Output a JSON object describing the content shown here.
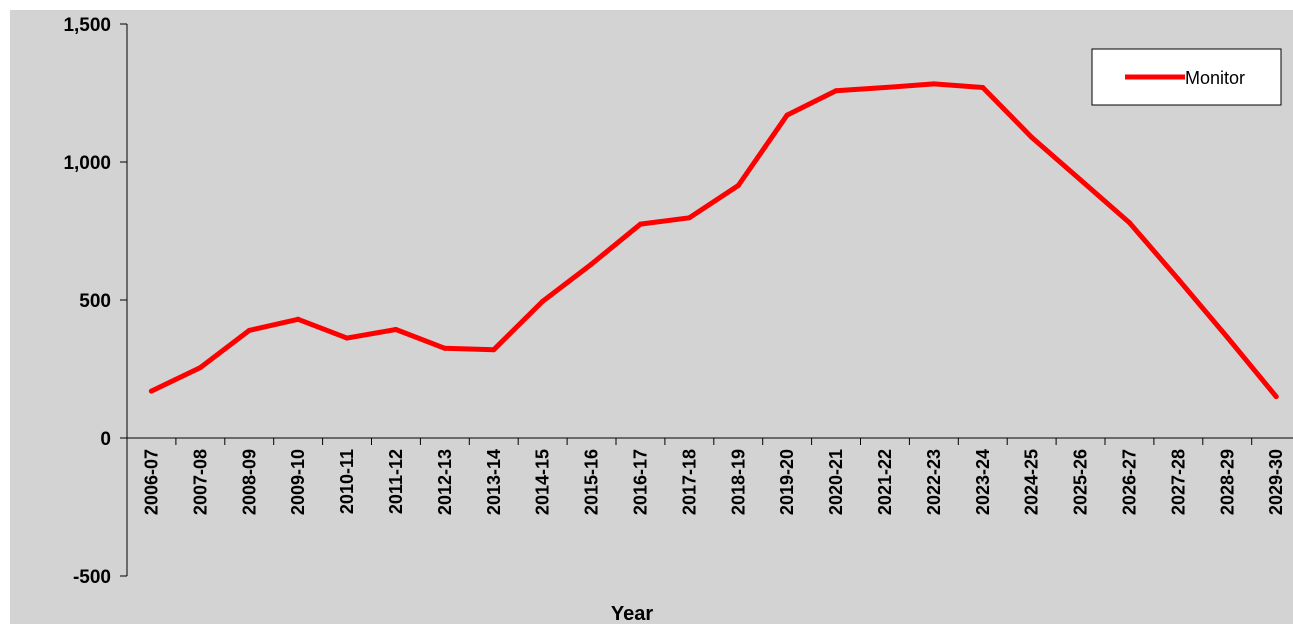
{
  "chart_data": {
    "type": "line",
    "title": "",
    "xlabel": "Year",
    "ylabel": "",
    "categories": [
      "2006-07",
      "2007-08",
      "2008-09",
      "2009-10",
      "2010-11",
      "2011-12",
      "2012-13",
      "2013-14",
      "2014-15",
      "2015-16",
      "2016-17",
      "2017-18",
      "2018-19",
      "2019-20",
      "2020-21",
      "2021-22",
      "2022-23",
      "2023-24",
      "2024-25",
      "2025-26",
      "2026-27",
      "2027-28",
      "2028-29",
      "2029-30"
    ],
    "series": [
      {
        "name": "Monitor",
        "color": "#ff0000",
        "values": [
          170,
          255,
          390,
          430,
          362,
          393,
          325,
          320,
          495,
          630,
          775,
          798,
          915,
          1170,
          1258,
          1270,
          1283,
          1270,
          1090,
          935,
          780,
          575,
          365,
          150
        ]
      }
    ],
    "ylim": [
      -500,
      1500
    ],
    "yticks": [
      -500,
      0,
      500,
      1000,
      1500
    ],
    "ytick_labels": [
      "-500",
      "0",
      "500",
      "1,000",
      "1,500"
    ],
    "grid": false,
    "legend": "top-right",
    "plot_background": "#d3d3d3"
  }
}
